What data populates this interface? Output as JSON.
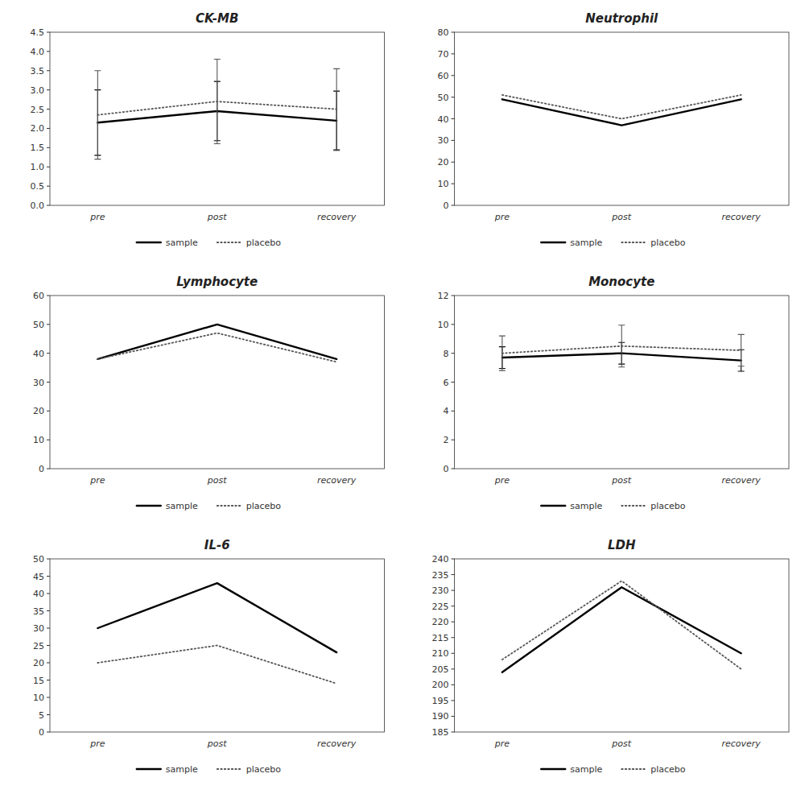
{
  "chart_data": [
    {
      "type": "line",
      "title": "CK-MB",
      "categories": [
        "pre",
        "post",
        "recovery"
      ],
      "series": [
        {
          "name": "sample",
          "color": "#000000",
          "line_style": "solid",
          "values": [
            2.15,
            2.45,
            2.2
          ],
          "errors": [
            0.85,
            0.77,
            0.77
          ]
        },
        {
          "name": "placebo",
          "color": "#555555",
          "line_style": "dotted",
          "values": [
            2.35,
            2.7,
            2.5
          ],
          "errors": [
            1.15,
            1.1,
            1.05
          ]
        }
      ],
      "ylim": [
        0,
        4.5
      ],
      "yticks": [
        {
          "value": 0,
          "label": "0.0"
        },
        0.5,
        {
          "value": 1.0,
          "label": "1.0"
        },
        1.5,
        {
          "value": 2.0,
          "label": "2.0"
        },
        2.5,
        {
          "value": 3.0,
          "label": "3.0"
        },
        3.5,
        {
          "value": 4.0,
          "label": "4.0"
        },
        4.5
      ],
      "grid": false,
      "legend": "bottom"
    },
    {
      "type": "line",
      "title": "Neutrophil",
      "categories": [
        "pre",
        "post",
        "recovery"
      ],
      "series": [
        {
          "name": "sample",
          "color": "#000000",
          "line_style": "solid",
          "values": [
            49,
            37,
            49
          ]
        },
        {
          "name": "placebo",
          "color": "#555555",
          "line_style": "dotted",
          "values": [
            51,
            40,
            51
          ]
        }
      ],
      "ylim": [
        0,
        80
      ],
      "yticks": [
        0,
        10,
        20,
        30,
        40,
        50,
        60,
        70,
        80
      ],
      "grid": false,
      "legend": "bottom"
    },
    {
      "type": "line",
      "title": "Lymphocyte",
      "categories": [
        "pre",
        "post",
        "recovery"
      ],
      "series": [
        {
          "name": "sample",
          "color": "#000000",
          "line_style": "solid",
          "values": [
            38,
            50,
            38
          ]
        },
        {
          "name": "placebo",
          "color": "#555555",
          "line_style": "dotted",
          "values": [
            38,
            47,
            37
          ]
        }
      ],
      "ylim": [
        0,
        60
      ],
      "yticks": [
        0,
        10,
        20,
        30,
        40,
        50,
        60
      ],
      "grid": false,
      "legend": "bottom"
    },
    {
      "type": "line",
      "title": "Monocyte",
      "categories": [
        "pre",
        "post",
        "recovery"
      ],
      "series": [
        {
          "name": "sample",
          "color": "#000000",
          "line_style": "solid",
          "values": [
            7.7,
            8.0,
            7.5
          ],
          "errors": [
            0.75,
            0.75,
            0.75
          ]
        },
        {
          "name": "placebo",
          "color": "#555555",
          "line_style": "dotted",
          "values": [
            8.0,
            8.5,
            8.2
          ],
          "errors": [
            1.2,
            1.45,
            1.1
          ]
        }
      ],
      "ylim": [
        0,
        12
      ],
      "yticks": [
        0,
        2,
        4,
        6,
        8,
        10,
        12
      ],
      "grid": false,
      "legend": "bottom"
    },
    {
      "type": "line",
      "title": "IL-6",
      "categories": [
        "pre",
        "post",
        "recovery"
      ],
      "series": [
        {
          "name": "sample",
          "color": "#000000",
          "line_style": "solid",
          "values": [
            30,
            43,
            23
          ]
        },
        {
          "name": "placebo",
          "color": "#555555",
          "line_style": "dotted",
          "values": [
            20,
            25,
            14
          ]
        }
      ],
      "ylim": [
        0,
        50
      ],
      "yticks": [
        0,
        5,
        10,
        15,
        20,
        25,
        30,
        35,
        40,
        45,
        50
      ],
      "grid": false,
      "legend": "bottom"
    },
    {
      "type": "line",
      "title": "LDH",
      "categories": [
        "pre",
        "post",
        "recovery"
      ],
      "series": [
        {
          "name": "sample",
          "color": "#000000",
          "line_style": "solid",
          "values": [
            204,
            231,
            210
          ]
        },
        {
          "name": "placebo",
          "color": "#555555",
          "line_style": "dotted",
          "values": [
            208,
            233,
            205
          ]
        }
      ],
      "ylim": [
        185,
        240
      ],
      "yticks": [
        185,
        190,
        195,
        200,
        205,
        210,
        215,
        220,
        225,
        230,
        235,
        240
      ],
      "grid": false,
      "legend": "bottom"
    }
  ]
}
